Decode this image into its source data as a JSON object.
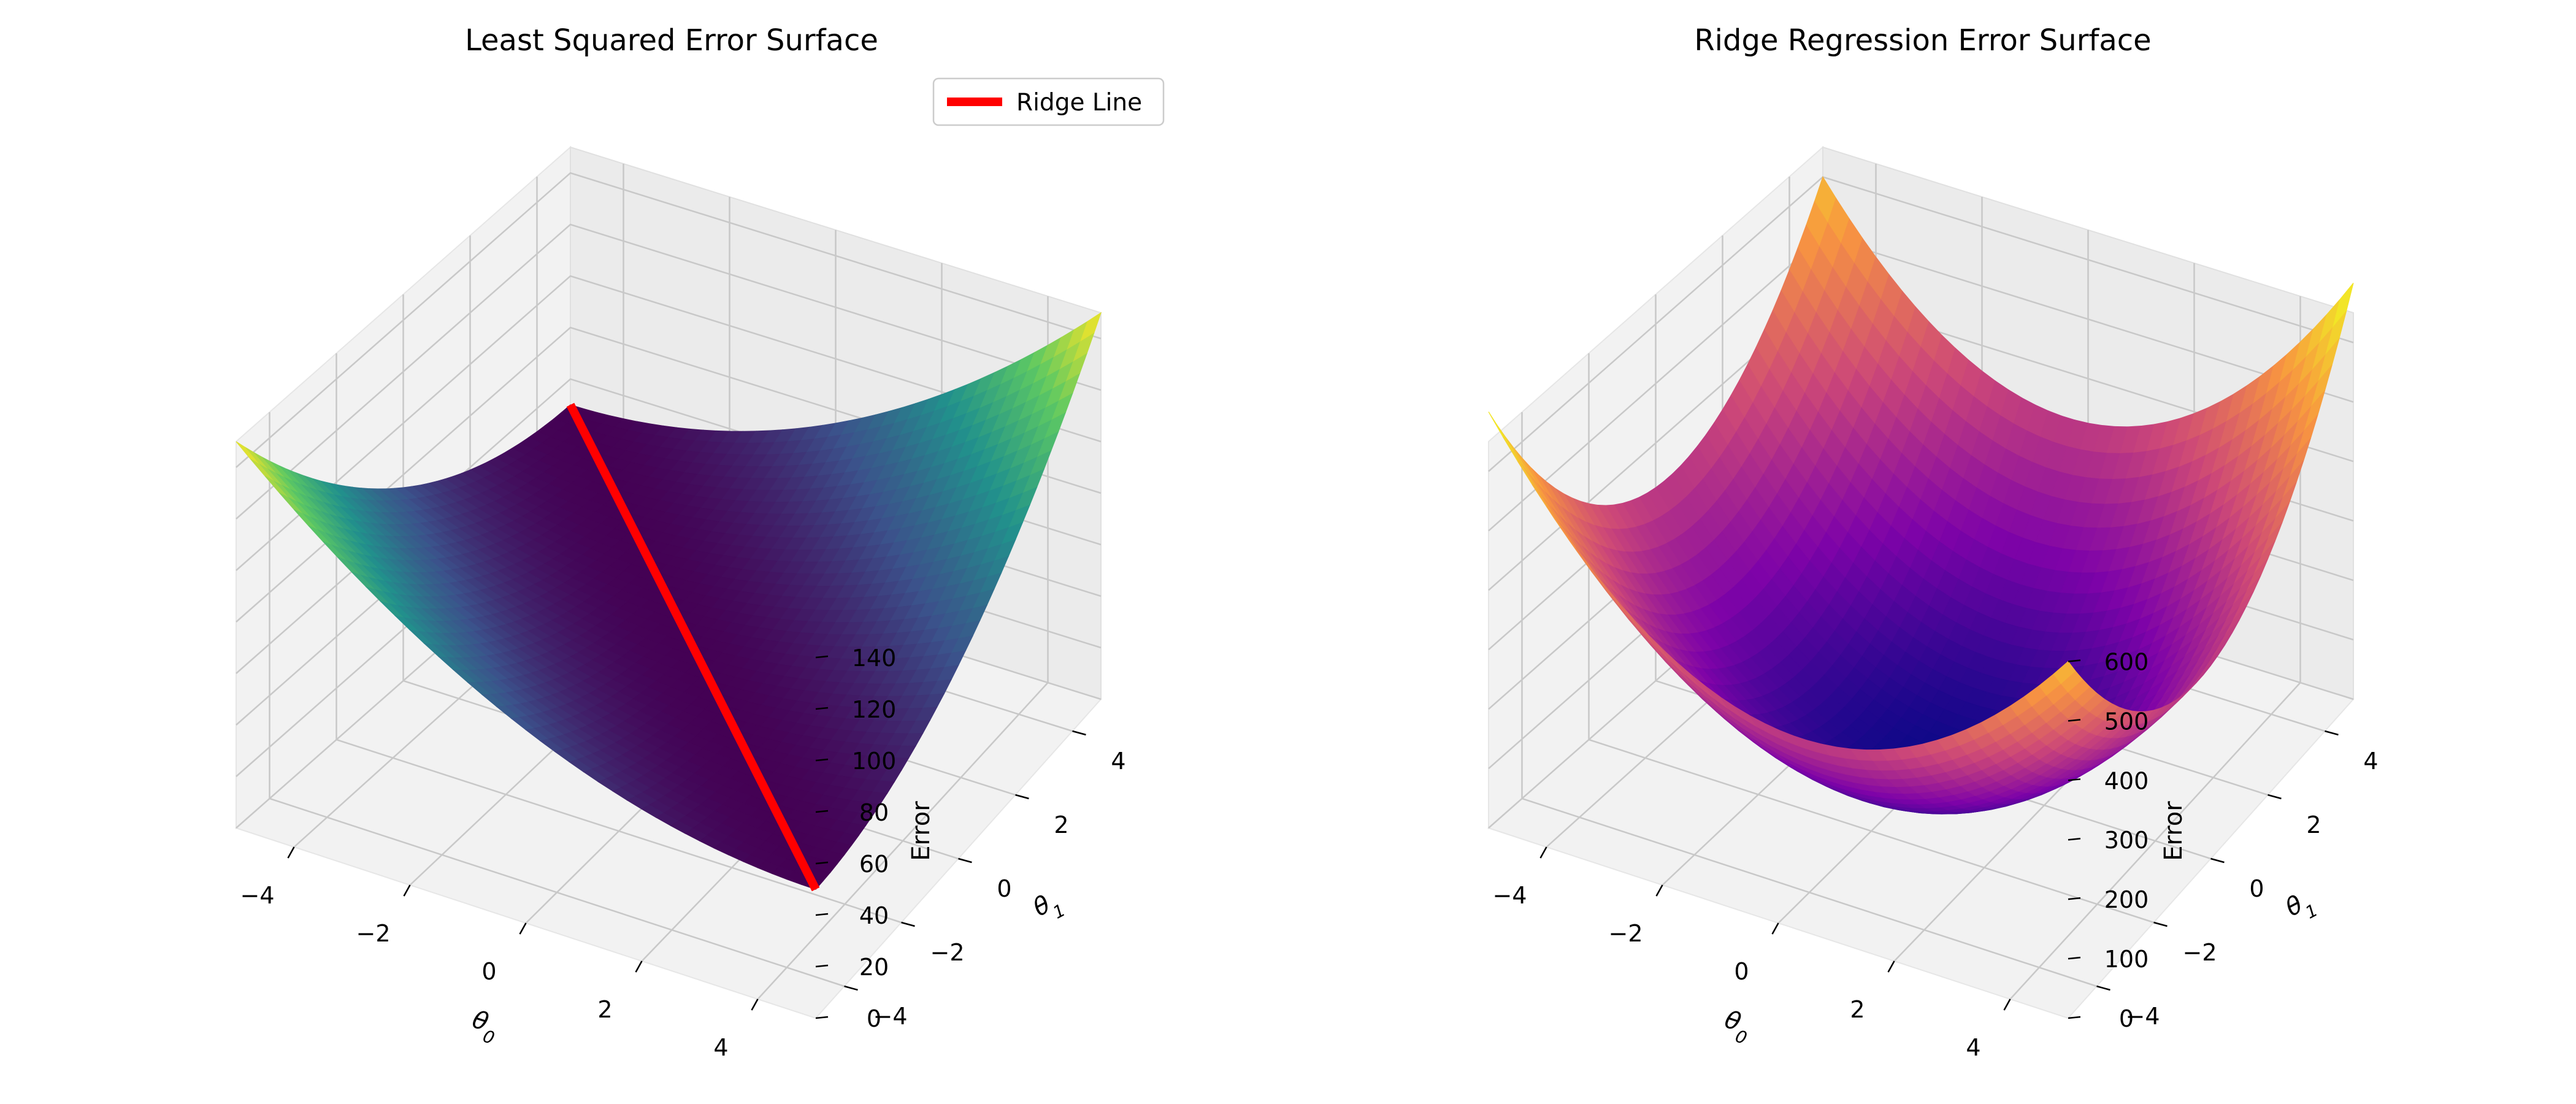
{
  "chart_data": [
    {
      "type": "surface",
      "title": "Least Squared Error Surface",
      "xlabel": "θ0",
      "ylabel": "θ1",
      "zlabel": "Error",
      "xlim": [
        -5,
        5
      ],
      "ylim": [
        -5,
        5
      ],
      "zlim": [
        0,
        150
      ],
      "xticks": [
        -4,
        -2,
        0,
        2,
        4
      ],
      "yticks": [
        -4,
        -2,
        0,
        2,
        4
      ],
      "zticks": [
        0,
        20,
        40,
        60,
        80,
        100,
        120,
        140
      ],
      "function": "(theta0 + theta1)^2 + 50",
      "grid": true,
      "colormap": "viridis",
      "colormap_stops": [
        "#440154",
        "#3b528b",
        "#21918c",
        "#5ec962",
        "#fde725"
      ],
      "legend": {
        "position": "top-right",
        "entries": [
          {
            "label": "Ridge Line",
            "color": "#ff0000"
          }
        ]
      },
      "lines": [
        {
          "name": "Ridge Line",
          "color": "#ff0000",
          "x": [
            -5,
            5
          ],
          "y": [
            5,
            -5
          ],
          "z": [
            50,
            50
          ]
        }
      ]
    },
    {
      "type": "surface",
      "title": "Ridge Regression Error Surface",
      "xlabel": "θ0",
      "ylabel": "θ1",
      "zlabel": "Error",
      "xlim": [
        -5,
        5
      ],
      "ylim": [
        -5,
        5
      ],
      "zlim": [
        0,
        650
      ],
      "xticks": [
        -4,
        -2,
        0,
        2,
        4
      ],
      "yticks": [
        -4,
        -2,
        0,
        2,
        4
      ],
      "zticks": [
        0,
        100,
        200,
        300,
        400,
        500,
        600
      ],
      "function": "(theta0 + theta1)^2 + 12*(theta0^2 + theta1^2)",
      "grid": true,
      "colormap": "plasma",
      "colormap_stops": [
        "#0d0887",
        "#7e03a8",
        "#cc4778",
        "#f89540",
        "#f0f921"
      ]
    }
  ]
}
